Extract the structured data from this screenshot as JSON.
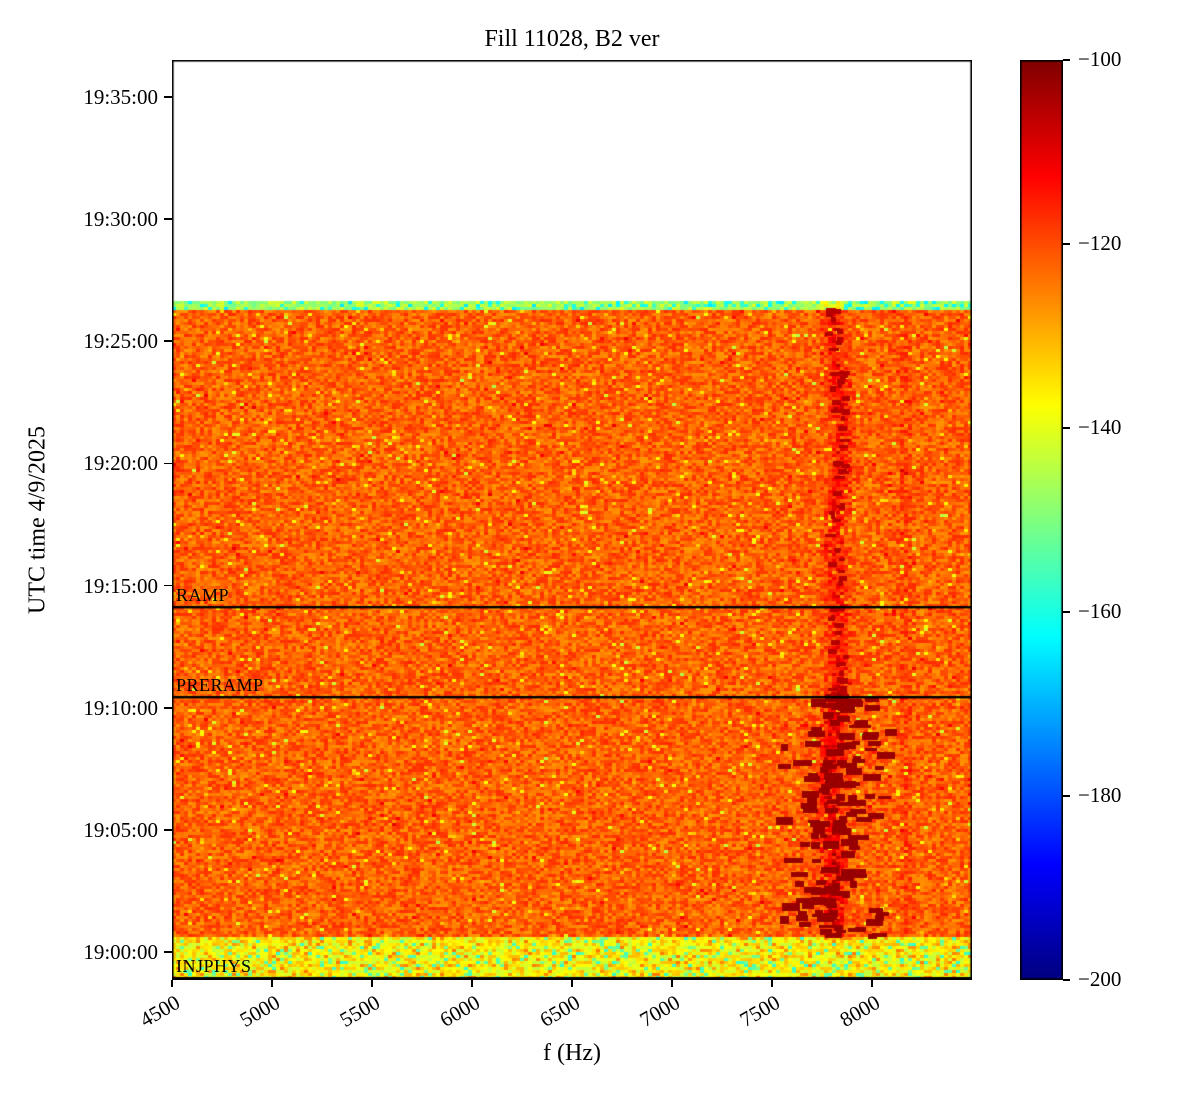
{
  "figure": {
    "title": "Fill 11028, B2 ver",
    "xlabel": "f (Hz)",
    "ylabel": "UTC time 4/9/2025"
  },
  "chart_data": {
    "type": "heatmap",
    "title": "Fill 11028, B2 ver",
    "xlabel": "f (Hz)",
    "ylabel": "UTC time 4/9/2025",
    "colormap": "jet",
    "x_unit": "Hz",
    "x_range": [
      4500,
      8500
    ],
    "x_ticks": [
      4500,
      5000,
      5500,
      6000,
      6500,
      7000,
      7500,
      8000
    ],
    "y_ticks": [
      "19:35:00",
      "19:30:00",
      "19:25:00",
      "19:20:00",
      "19:15:00",
      "19:10:00",
      "19:05:00",
      "19:00:00"
    ],
    "y_view_range": [
      "18:58:51",
      "19:36:16"
    ],
    "colorbar": {
      "range_db": [
        -200,
        -100
      ],
      "ticks_db": [
        -100,
        -120,
        -140,
        -160,
        -180,
        -200
      ]
    },
    "data_region": {
      "time_start": "18:58:51",
      "time_end": "19:26:40",
      "background_level_db": -122,
      "noise_db": 5.5
    },
    "bands": {
      "injection_bottom_band": {
        "time_start": "18:58:51",
        "time_end": "19:00:40",
        "level_db": -137,
        "description": "yellow-green noisy band at start of fill"
      },
      "top_edge_band": {
        "time_start": "19:26:20",
        "time_end": "19:26:40",
        "level_db": -146,
        "description": "thin green speckled stripe at end of data"
      },
      "vertical_band": {
        "f_center_hz": 7815,
        "sigma_hz": 55,
        "boost_db_lower": 11,
        "boost_db_upper": 7.5,
        "description": "dark red drifting spectral line near 7800 Hz"
      },
      "faint_line": {
        "f_center_hz": 8170,
        "sigma_hz": 30,
        "boost_db": 2.5
      }
    },
    "speckles": {
      "strong_blobs": {
        "time_start": "19:00:30",
        "time_end": "19:10:20",
        "f_range_hz": [
          7560,
          8150
        ],
        "level_db": -101,
        "count": 150,
        "description": "dark red dashes scattered around the 7800 Hz line before PRERAMP"
      },
      "band_dots": {
        "time_start": "19:10:26",
        "time_end": "19:26:15",
        "level_db": -104,
        "count": 70,
        "description": "dotted dark red marks along the 7800 Hz line after PRERAMP"
      }
    },
    "annotations": [
      {
        "label": "RAMP",
        "utc": "19:14:08"
      },
      {
        "label": "PRERAMP",
        "utc": "19:10:26"
      },
      {
        "label": "INJPHYS",
        "utc": "18:58:56"
      }
    ]
  }
}
